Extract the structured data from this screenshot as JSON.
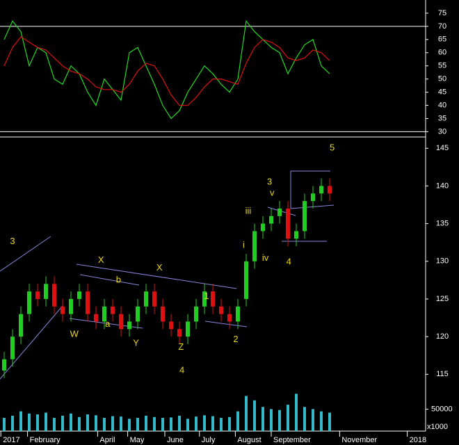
{
  "chart_data": [
    {
      "type": "line",
      "series": [
        {
          "color": "#22dd22",
          "values": [
            65,
            72,
            68,
            55,
            62,
            60,
            50,
            48,
            55,
            52,
            45,
            40,
            50,
            46,
            42,
            60,
            62,
            55,
            48,
            40,
            35,
            38,
            45,
            50,
            55,
            52,
            48,
            45,
            50,
            72,
            68,
            65,
            62,
            60,
            52,
            58,
            63,
            65,
            55,
            52
          ]
        },
        {
          "color": "#dd1111",
          "values": [
            55,
            62,
            66,
            64,
            62,
            61,
            58,
            55,
            53,
            52,
            50,
            47,
            46,
            46,
            45,
            48,
            53,
            56,
            55,
            50,
            44,
            40,
            40,
            43,
            47,
            50,
            50,
            49,
            48,
            56,
            62,
            65,
            64,
            62,
            58,
            57,
            58,
            61,
            60,
            57
          ]
        }
      ],
      "hlines": [
        70,
        30
      ],
      "xlim": [
        -0.5,
        50.5
      ],
      "ylim": [
        28,
        80
      ],
      "yticks": [
        30,
        35,
        40,
        45,
        50,
        55,
        60,
        65,
        70,
        75
      ]
    },
    {
      "type": "candlestick",
      "open": [
        115.5,
        117,
        120,
        123,
        126,
        125,
        127,
        124,
        123,
        125,
        126,
        123,
        122,
        124,
        123,
        121,
        122,
        124,
        126,
        124,
        122,
        121,
        120,
        122,
        124,
        126,
        124,
        123,
        122,
        125,
        130,
        134,
        135,
        136,
        137,
        133,
        134,
        138,
        139,
        140
      ],
      "high": [
        118,
        121,
        124,
        127,
        127,
        128,
        128,
        125,
        126,
        127,
        127,
        124,
        125,
        125,
        124,
        123,
        125,
        127,
        127,
        125,
        123,
        122,
        123,
        125,
        127,
        127,
        125,
        124,
        125,
        131,
        135,
        136,
        137,
        138,
        138,
        135,
        139,
        140,
        141,
        141
      ],
      "low": [
        114.5,
        116,
        119,
        122,
        124,
        124,
        123,
        122,
        122,
        124,
        122,
        121,
        121,
        122,
        120,
        120,
        121,
        123,
        123,
        121,
        120,
        119,
        119,
        121,
        123,
        123,
        122,
        121,
        121,
        124,
        129,
        133,
        134,
        135,
        132,
        132,
        133,
        137,
        138,
        138
      ],
      "close": [
        117,
        120,
        123,
        126,
        125,
        127,
        124,
        123,
        125,
        126,
        123,
        122,
        124,
        123,
        121,
        122,
        124,
        126,
        124,
        122,
        121,
        120,
        122,
        124,
        126,
        124,
        123,
        122,
        124,
        130,
        134,
        135,
        136,
        137,
        133,
        134,
        138,
        139,
        140,
        139
      ],
      "up_color": "#22cc22",
      "down_color": "#dd1111",
      "annotations": [
        {
          "text": "3",
          "x": 1.0,
          "y": 132.6
        },
        {
          "text": "W",
          "x": 8.4,
          "y": 120.3
        },
        {
          "text": "X",
          "x": 11.6,
          "y": 130.1
        },
        {
          "text": "a",
          "x": 12.4,
          "y": 121.6
        },
        {
          "text": "b",
          "x": 13.7,
          "y": 127.5
        },
        {
          "text": "Y",
          "x": 15.8,
          "y": 119.1
        },
        {
          "text": "X",
          "x": 18.6,
          "y": 129.1
        },
        {
          "text": "Z",
          "x": 21.2,
          "y": 118.6
        },
        {
          "text": "4",
          "x": 21.3,
          "y": 115.5
        },
        {
          "text": "1",
          "x": 24.25,
          "y": 125.3
        },
        {
          "text": "2",
          "x": 27.75,
          "y": 119.6
        },
        {
          "text": "i",
          "x": 28.7,
          "y": 132.1
        },
        {
          "text": "iii",
          "x": 29.25,
          "y": 136.6
        },
        {
          "text": "3",
          "x": 31.8,
          "y": 140.5
        },
        {
          "text": "v",
          "x": 32.1,
          "y": 139
        },
        {
          "text": "iv",
          "x": 31.3,
          "y": 130.4
        },
        {
          "text": "4",
          "x": 34.1,
          "y": 129.9
        },
        {
          "text": "5",
          "x": 39.3,
          "y": 145
        }
      ],
      "xlim": [
        -0.5,
        50.5
      ],
      "ylim": [
        113,
        146.5
      ],
      "yticks": [
        115,
        120,
        125,
        130,
        135,
        140,
        145
      ]
    },
    {
      "type": "bar",
      "values": [
        30000,
        35000,
        45000,
        40000,
        38000,
        42000,
        30000,
        35000,
        40000,
        32000,
        38000,
        36000,
        30000,
        34000,
        33000,
        28000,
        30000,
        35000,
        32000,
        30000,
        31000,
        35000,
        28000,
        33000,
        36000,
        34000,
        30000,
        32000,
        45000,
        80000,
        70000,
        55000,
        50000,
        48000,
        60000,
        85000,
        55000,
        50000,
        45000,
        42000
      ],
      "color": "#33bbcc",
      "unit_label": "x1000",
      "xlim": [
        -0.5,
        50.5
      ],
      "ylim": [
        0,
        95000
      ],
      "yticks": [
        50000
      ],
      "xticks": [
        {
          "value": -0.4,
          "label": "2017"
        },
        {
          "value": 2.8,
          "label": "February"
        },
        {
          "value": 11.2,
          "label": "April"
        },
        {
          "value": 14.8,
          "label": "May"
        },
        {
          "value": 19.25,
          "label": "June"
        },
        {
          "value": 23.4,
          "label": "July"
        },
        {
          "value": 27.7,
          "label": "August"
        },
        {
          "value": 32,
          "label": "September"
        },
        {
          "value": 40.2,
          "label": "November"
        },
        {
          "value": 48.3,
          "label": "2018"
        }
      ]
    }
  ]
}
